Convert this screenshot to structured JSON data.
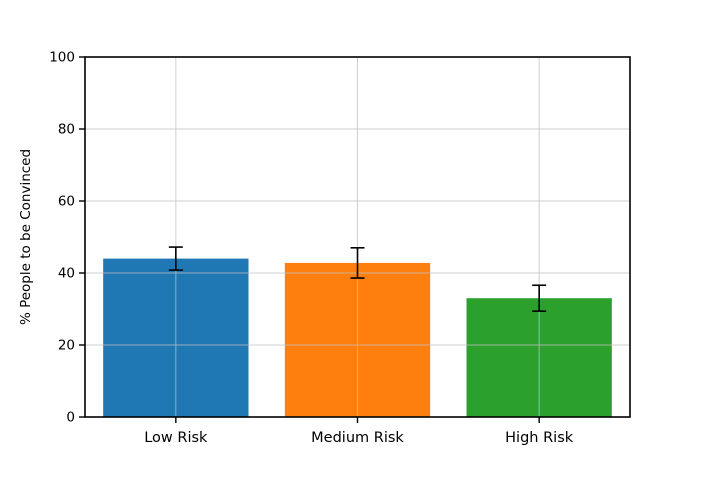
{
  "chart_data": {
    "type": "bar",
    "categories": [
      "Low Risk",
      "Medium Risk",
      "High Risk"
    ],
    "values": [
      44,
      42.8,
      33
    ],
    "errors": [
      3.2,
      4.2,
      3.6
    ],
    "bar_colors": [
      "#1f77b4",
      "#ff7f0e",
      "#2ca02c"
    ],
    "error_color": "#000000",
    "title": "",
    "xlabel": "",
    "ylabel": "% People to be Convinced",
    "ylim": [
      0,
      100
    ],
    "yticks": [
      0,
      20,
      40,
      60,
      80,
      100
    ],
    "grid": true,
    "grid_color": "#c0c0c0",
    "legend": null
  }
}
